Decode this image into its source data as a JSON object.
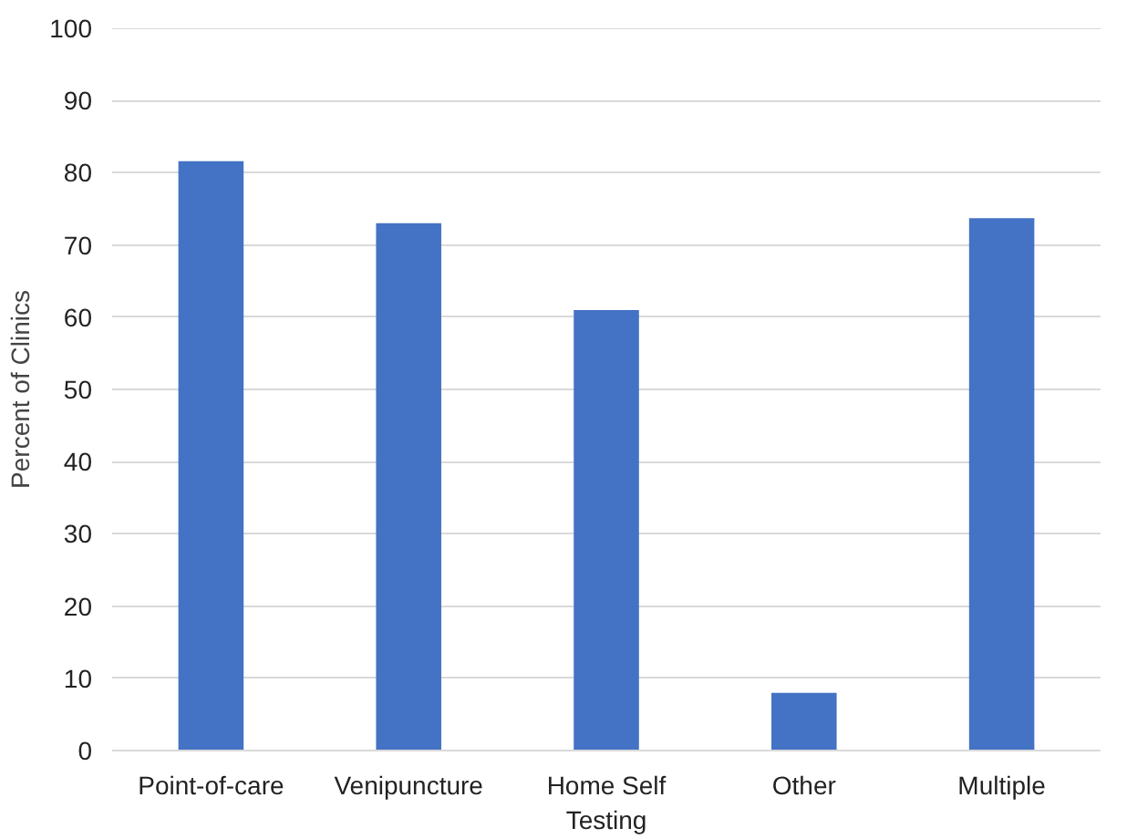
{
  "chart_data": {
    "type": "bar",
    "ylabel": "Percent of Clinics",
    "categories": [
      "Point-of-care",
      "Venipuncture",
      "Home Self\nTesting",
      "Other",
      "Multiple"
    ],
    "values": [
      81.6,
      73,
      61,
      8,
      73.7
    ],
    "color": "#4472c4",
    "ylim": [
      0,
      100
    ],
    "yticks": [
      0,
      10,
      20,
      30,
      40,
      50,
      60,
      70,
      80,
      90,
      100
    ],
    "grid": "y"
  }
}
